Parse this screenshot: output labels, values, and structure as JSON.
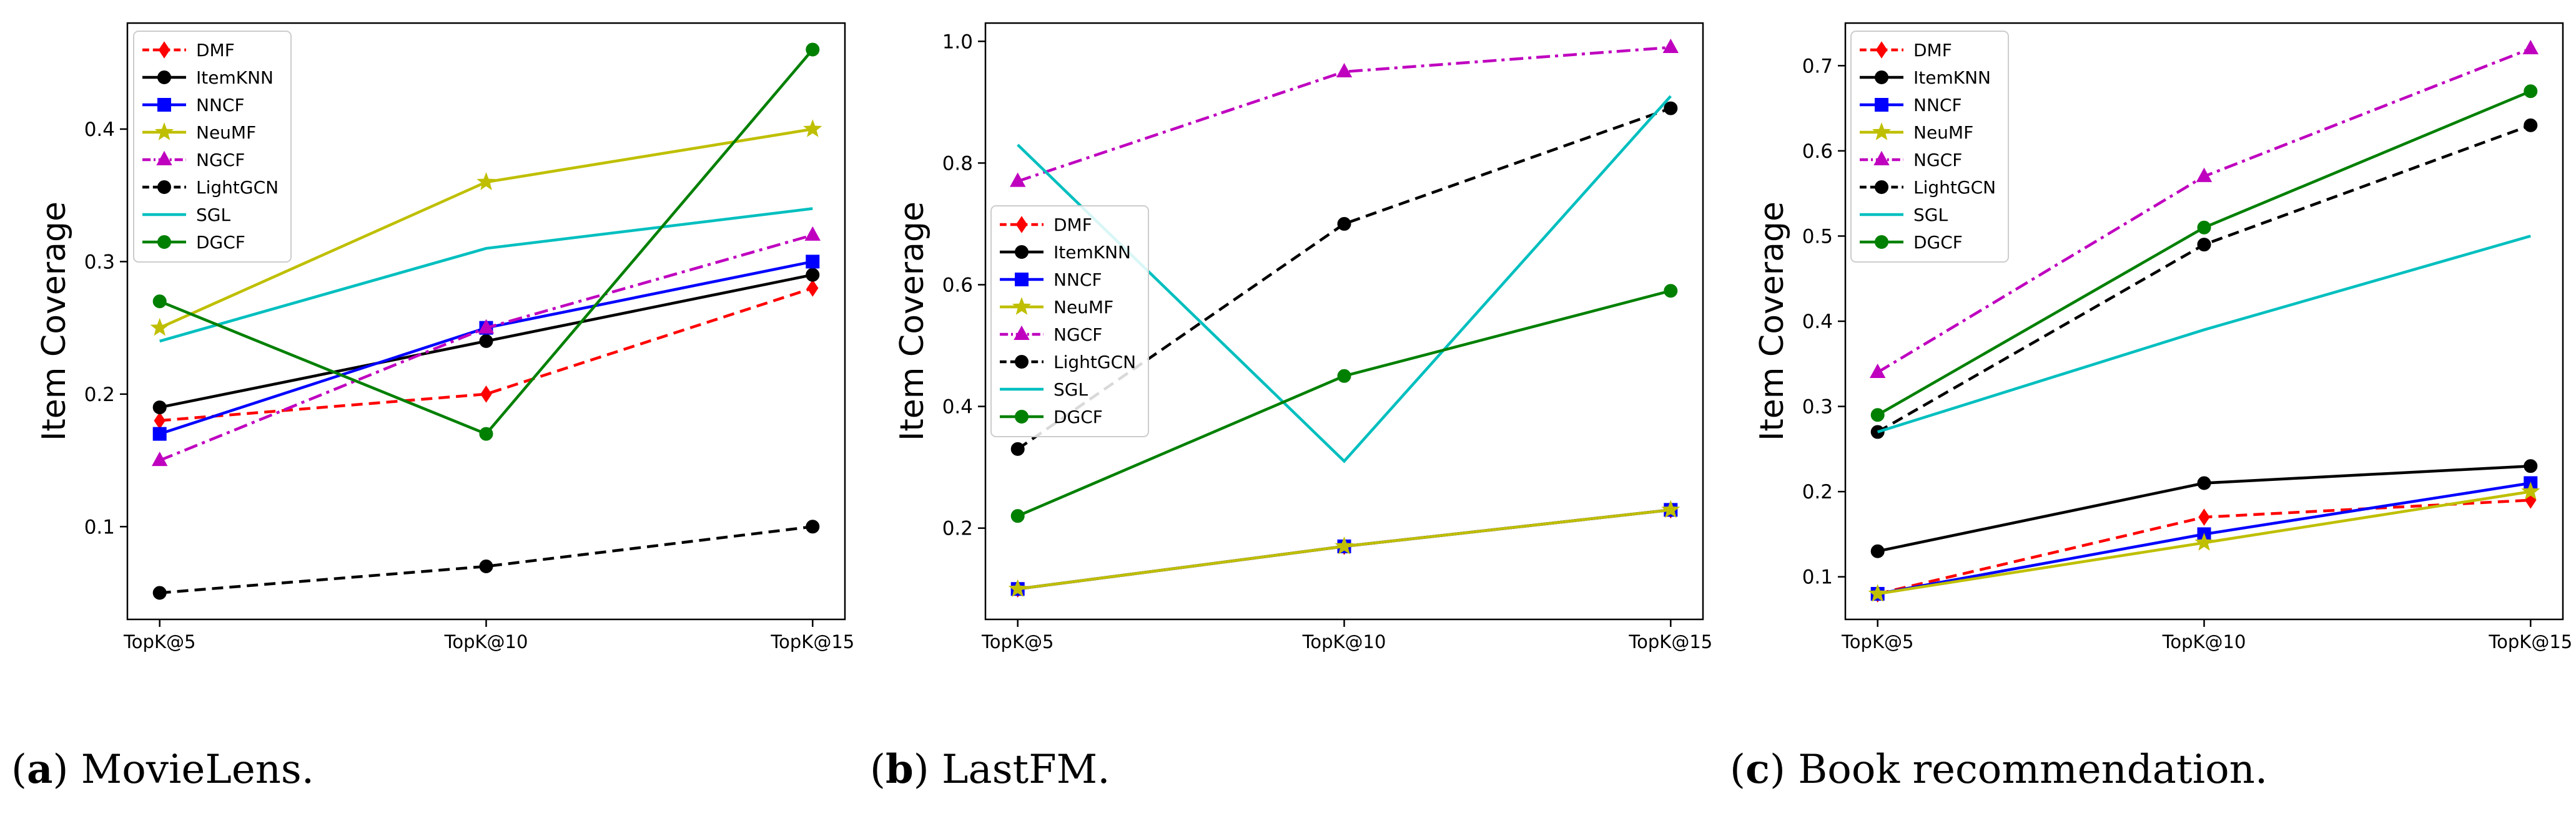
{
  "captions": [
    {
      "letter": "a",
      "text": ") MovieLens.",
      "open": "("
    },
    {
      "letter": "b",
      "text": ") LastFM.",
      "open": "("
    },
    {
      "letter": "c",
      "text": ") Book recommendation.",
      "open": "("
    }
  ],
  "styles": {
    "DMF": {
      "color": "#ff0000",
      "dash": "dashed",
      "marker": "diamond"
    },
    "ItemKNN": {
      "color": "#000000",
      "dash": "solid",
      "marker": "circle"
    },
    "NNCF": {
      "color": "#0000ff",
      "dash": "solid",
      "marker": "square"
    },
    "NeuMF": {
      "color": "#bfbf00",
      "dash": "solid",
      "marker": "star"
    },
    "NGCF": {
      "color": "#bf00bf",
      "dash": "dashdot",
      "marker": "triangle"
    },
    "LightGCN": {
      "color": "#000000",
      "dash": "dashed",
      "marker": "circle"
    },
    "SGL": {
      "color": "#00bfbf",
      "dash": "solid",
      "marker": "none"
    },
    "DGCF": {
      "color": "#008000",
      "dash": "solid",
      "marker": "circle"
    }
  },
  "chart_data": [
    {
      "type": "line",
      "title": "MovieLens",
      "xlabel": "",
      "ylabel": "Item Coverage",
      "categories": [
        "TopK@5",
        "TopK@10",
        "TopK@15"
      ],
      "ylim": [
        0.03,
        0.48
      ],
      "yticks": [
        "0.1",
        "0.2",
        "0.3",
        "0.4"
      ],
      "legend": "upper-left",
      "series": [
        {
          "name": "DMF",
          "values": [
            0.18,
            0.2,
            0.28
          ]
        },
        {
          "name": "ItemKNN",
          "values": [
            0.19,
            0.24,
            0.29
          ]
        },
        {
          "name": "NNCF",
          "values": [
            0.17,
            0.25,
            0.3
          ]
        },
        {
          "name": "NeuMF",
          "values": [
            0.25,
            0.36,
            0.4
          ]
        },
        {
          "name": "NGCF",
          "values": [
            0.15,
            0.25,
            0.32
          ]
        },
        {
          "name": "LightGCN",
          "values": [
            0.05,
            0.07,
            0.1
          ]
        },
        {
          "name": "SGL",
          "values": [
            0.24,
            0.31,
            0.34
          ]
        },
        {
          "name": "DGCF",
          "values": [
            0.27,
            0.17,
            0.46
          ]
        }
      ]
    },
    {
      "type": "line",
      "title": "LastFM",
      "xlabel": "",
      "ylabel": "Item Coverage",
      "categories": [
        "TopK@5",
        "TopK@10",
        "TopK@15"
      ],
      "ylim": [
        0.05,
        1.03
      ],
      "yticks": [
        "0.2",
        "0.4",
        "0.6",
        "0.8",
        "1.0"
      ],
      "legend": "center-left",
      "series": [
        {
          "name": "DMF",
          "values": [
            0.1,
            0.17,
            0.23
          ]
        },
        {
          "name": "ItemKNN",
          "values": [
            0.1,
            0.17,
            0.23
          ]
        },
        {
          "name": "NNCF",
          "values": [
            0.1,
            0.17,
            0.23
          ]
        },
        {
          "name": "NeuMF",
          "values": [
            0.1,
            0.17,
            0.23
          ]
        },
        {
          "name": "NGCF",
          "values": [
            0.77,
            0.95,
            0.99
          ]
        },
        {
          "name": "LightGCN",
          "values": [
            0.33,
            0.7,
            0.89
          ]
        },
        {
          "name": "SGL",
          "values": [
            0.83,
            0.31,
            0.91
          ]
        },
        {
          "name": "DGCF",
          "values": [
            0.22,
            0.45,
            0.59
          ]
        }
      ]
    },
    {
      "type": "line",
      "title": "Book recommendation",
      "xlabel": "",
      "ylabel": "Item Coverage",
      "categories": [
        "TopK@5",
        "TopK@10",
        "TopK@15"
      ],
      "ylim": [
        0.05,
        0.75
      ],
      "yticks": [
        "0.1",
        "0.2",
        "0.3",
        "0.4",
        "0.5",
        "0.6",
        "0.7"
      ],
      "legend": "upper-left",
      "series": [
        {
          "name": "DMF",
          "values": [
            0.08,
            0.17,
            0.19
          ]
        },
        {
          "name": "ItemKNN",
          "values": [
            0.13,
            0.21,
            0.23
          ]
        },
        {
          "name": "NNCF",
          "values": [
            0.08,
            0.15,
            0.21
          ]
        },
        {
          "name": "NeuMF",
          "values": [
            0.08,
            0.14,
            0.2
          ]
        },
        {
          "name": "NGCF",
          "values": [
            0.34,
            0.57,
            0.72
          ]
        },
        {
          "name": "LightGCN",
          "values": [
            0.27,
            0.49,
            0.63
          ]
        },
        {
          "name": "SGL",
          "values": [
            0.27,
            0.39,
            0.5
          ]
        },
        {
          "name": "DGCF",
          "values": [
            0.29,
            0.51,
            0.67
          ]
        }
      ]
    }
  ]
}
